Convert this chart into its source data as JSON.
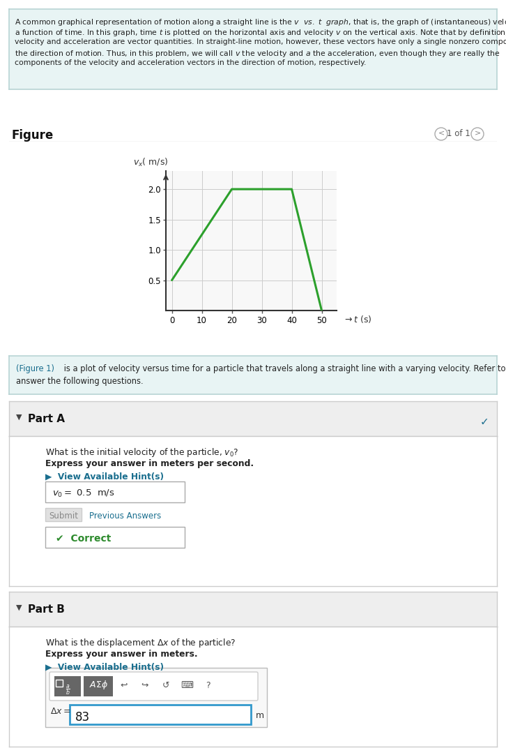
{
  "bg_color": "#ffffff",
  "top_box_color": "#e8f4f4",
  "top_box_border": "#b8d4d4",
  "figure_label": "Figure",
  "figure_nav": "1 of 1",
  "graph_t": [
    0,
    20,
    40,
    50
  ],
  "graph_v": [
    0.5,
    2.0,
    2.0,
    0.0
  ],
  "graph_color": "#2ca02c",
  "graph_xlim": [
    -2,
    55
  ],
  "graph_ylim": [
    0,
    2.3
  ],
  "graph_xticks": [
    0,
    10,
    20,
    30,
    40,
    50
  ],
  "graph_yticks": [
    0.5,
    1.0,
    1.5,
    2.0
  ],
  "middle_box_color": "#e8f4f4",
  "middle_box_border": "#b8d4d4",
  "partA_bg": "#eeeeee",
  "partB_bg": "#eeeeee",
  "hint_color": "#1a6e8e",
  "checkmark_green": "#2e8b2e",
  "checkmark_blue": "#1a6e8e",
  "input_border_color": "#3399cc",
  "section_border": "#dddddd",
  "gray_text": "#666666",
  "dark_text": "#222222",
  "separator_color": "#cccccc"
}
